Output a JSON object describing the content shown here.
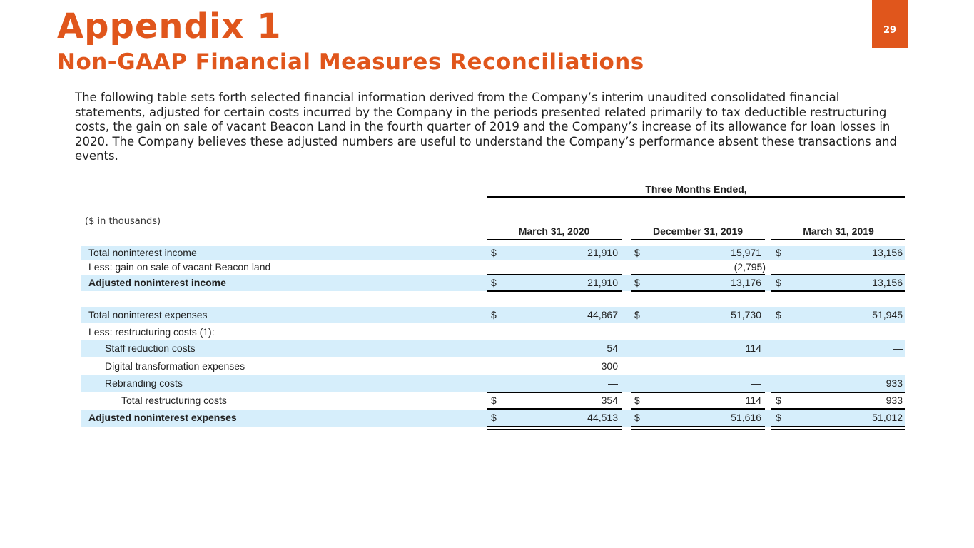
{
  "header": {
    "title": "Appendix 1",
    "subtitle": "Non-GAAP Financial Measures Reconciliations",
    "page_number": "29"
  },
  "intro": "The following table sets forth selected financial information derived from the Company’s interim unaudited consolidated financial statements, adjusted for certain costs incurred by the Company in the periods presented related primarily to tax deductible restructuring costs, the gain on sale of vacant Beacon Land in the fourth quarter of 2019 and the Company’s increase of its allowance for loan losses in 2020. The Company believes these adjusted numbers are useful to understand the Company’s performance absent these transactions and events.",
  "table": {
    "units_label": "($ in thousands)",
    "period_header": "Three Months Ended,",
    "columns": [
      "March 31, 2020",
      "December 31, 2019",
      "March 31, 2019"
    ],
    "currency_symbol": "$",
    "rows": [
      {
        "label": "Total noninterest income",
        "values": [
          "21,910",
          "15,971",
          "13,156"
        ]
      },
      {
        "label": "Less: gain on sale of vacant Beacon land",
        "values": [
          "—",
          "(2,795)",
          "—"
        ]
      },
      {
        "label": "Adjusted noninterest income",
        "values": [
          "21,910",
          "13,176",
          "13,156"
        ]
      },
      {
        "label": "Total noninterest expenses",
        "values": [
          "44,867",
          "51,730",
          "51,945"
        ]
      },
      {
        "label": "Less: restructuring costs (1):",
        "values": [
          "",
          "",
          ""
        ]
      },
      {
        "label": "Staff reduction costs",
        "values": [
          "54",
          "114",
          "—"
        ]
      },
      {
        "label": "Digital transformation expenses",
        "values": [
          "300",
          "—",
          "—"
        ]
      },
      {
        "label": "Rebranding costs",
        "values": [
          "—",
          "—",
          "933"
        ]
      },
      {
        "label": "Total restructuring costs",
        "values": [
          "354",
          "114",
          "933"
        ]
      },
      {
        "label": "Adjusted noninterest expenses",
        "values": [
          "44,513",
          "51,616",
          "51,012"
        ]
      }
    ]
  }
}
